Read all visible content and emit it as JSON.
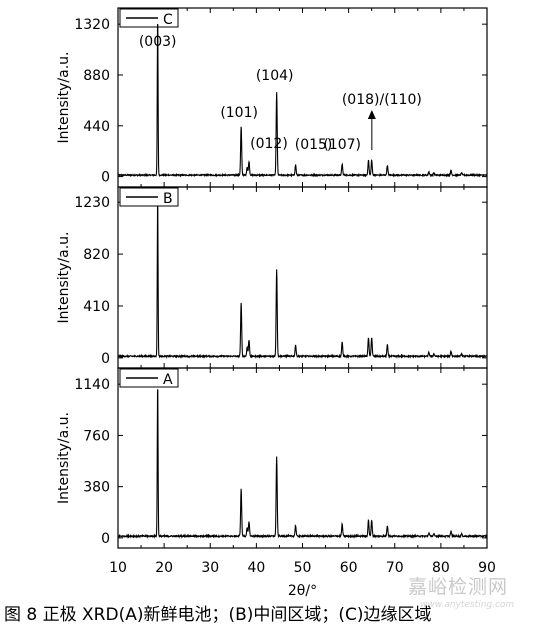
{
  "chart_data": {
    "type": "line",
    "xlabel": "2θ/°",
    "xlim": [
      10,
      90
    ],
    "x_ticks": [
      "10",
      "20",
      "30",
      "40",
      "50",
      "60",
      "70",
      "80",
      "90"
    ],
    "ylabel": "Intensity/a.u.",
    "panels": [
      {
        "name": "C",
        "legend": "C",
        "ylim": [
          -90,
          1460
        ],
        "y_ticks": [
          "0",
          "440",
          "880",
          "1320"
        ],
        "peaks": [
          {
            "x": 18.6,
            "y": 1380
          },
          {
            "x": 36.7,
            "y": 420
          },
          {
            "x": 38.0,
            "y": 70
          },
          {
            "x": 38.4,
            "y": 120
          },
          {
            "x": 44.4,
            "y": 720
          },
          {
            "x": 48.5,
            "y": 90
          },
          {
            "x": 58.6,
            "y": 95
          },
          {
            "x": 64.3,
            "y": 130
          },
          {
            "x": 65.0,
            "y": 130
          },
          {
            "x": 68.4,
            "y": 85
          },
          {
            "x": 77.4,
            "y": 30
          },
          {
            "x": 78.5,
            "y": 20
          },
          {
            "x": 82.2,
            "y": 40
          },
          {
            "x": 84.5,
            "y": 20
          }
        ],
        "annotations": [
          {
            "text": "(003)",
            "x": 18.6
          },
          {
            "text": "(101)",
            "x": 36.7
          },
          {
            "text": "(012)",
            "x": 38.4
          },
          {
            "text": "(104)",
            "x": 44.4
          },
          {
            "text": "(015)",
            "x": 48.5
          },
          {
            "text": "(107)",
            "x": 58.6
          },
          {
            "text": "(018)/(110)",
            "x": 64.6
          }
        ]
      },
      {
        "name": "B",
        "legend": "B",
        "ylim": [
          -80,
          1350
        ],
        "y_ticks": [
          "0",
          "410",
          "820",
          "1230"
        ],
        "peaks": [
          {
            "x": 18.6,
            "y": 1250
          },
          {
            "x": 36.7,
            "y": 420
          },
          {
            "x": 38.0,
            "y": 70
          },
          {
            "x": 38.4,
            "y": 130
          },
          {
            "x": 44.4,
            "y": 690
          },
          {
            "x": 48.5,
            "y": 90
          },
          {
            "x": 58.6,
            "y": 110
          },
          {
            "x": 64.3,
            "y": 150
          },
          {
            "x": 65.0,
            "y": 150
          },
          {
            "x": 68.4,
            "y": 90
          },
          {
            "x": 77.4,
            "y": 30
          },
          {
            "x": 78.5,
            "y": 20
          },
          {
            "x": 82.2,
            "y": 40
          },
          {
            "x": 84.5,
            "y": 20
          }
        ]
      },
      {
        "name": "A",
        "legend": "A",
        "ylim": [
          -75,
          1260
        ],
        "y_ticks": [
          "0",
          "380",
          "760",
          "1140"
        ],
        "peaks": [
          {
            "x": 18.6,
            "y": 1150
          },
          {
            "x": 36.7,
            "y": 350
          },
          {
            "x": 38.0,
            "y": 60
          },
          {
            "x": 38.4,
            "y": 110
          },
          {
            "x": 44.4,
            "y": 590
          },
          {
            "x": 48.5,
            "y": 80
          },
          {
            "x": 58.6,
            "y": 90
          },
          {
            "x": 64.3,
            "y": 120
          },
          {
            "x": 65.0,
            "y": 120
          },
          {
            "x": 68.4,
            "y": 80
          },
          {
            "x": 77.4,
            "y": 25
          },
          {
            "x": 78.5,
            "y": 15
          },
          {
            "x": 82.2,
            "y": 35
          },
          {
            "x": 84.5,
            "y": 15
          }
        ]
      }
    ],
    "grid": false,
    "legend_placement": "top-left"
  },
  "caption": "图 8 正极 XRD(A)新鲜电池；(B)中间区域；(C)边缘区域",
  "watermark": "嘉峪检测网",
  "watermark_url": "www.anytesting.com",
  "colors": {
    "line": "#000000",
    "background": "#ffffff"
  }
}
